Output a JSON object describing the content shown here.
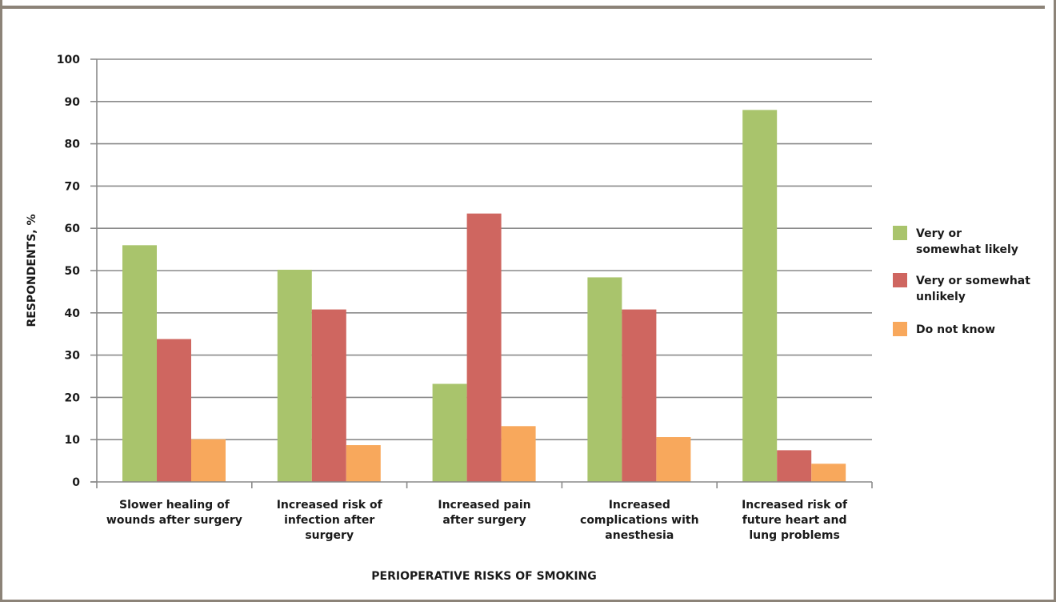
{
  "chart_data": {
    "type": "bar",
    "xlabel": "PERIOPERATIVE RISKS OF SMOKING",
    "ylabel": "RESPONDENTS, %",
    "ylim": [
      0,
      100
    ],
    "yticks": [
      0,
      10,
      20,
      30,
      40,
      50,
      60,
      70,
      80,
      90,
      100
    ],
    "grid": true,
    "legend_position": "right",
    "categories": [
      [
        "Slower healing of",
        "wounds after surgery"
      ],
      [
        "Increased risk of",
        "infection after",
        "surgery"
      ],
      [
        "Increased pain",
        "after surgery"
      ],
      [
        "Increased",
        "complications with",
        "anesthesia"
      ],
      [
        "Increased risk of",
        "future heart and",
        "lung problems"
      ]
    ],
    "series": [
      {
        "name": [
          "Very or",
          "somewhat likely"
        ],
        "color": "#a9c46c",
        "values": [
          56,
          50.2,
          23.2,
          48.4,
          88
        ]
      },
      {
        "name": [
          "Very or somewhat",
          "unlikely"
        ],
        "color": "#cf6660",
        "values": [
          33.8,
          40.8,
          63.5,
          40.8,
          7.5
        ]
      },
      {
        "name": [
          "Do not know"
        ],
        "color": "#f8a85c",
        "values": [
          10.1,
          8.7,
          13.2,
          10.6,
          4.3
        ]
      }
    ]
  }
}
